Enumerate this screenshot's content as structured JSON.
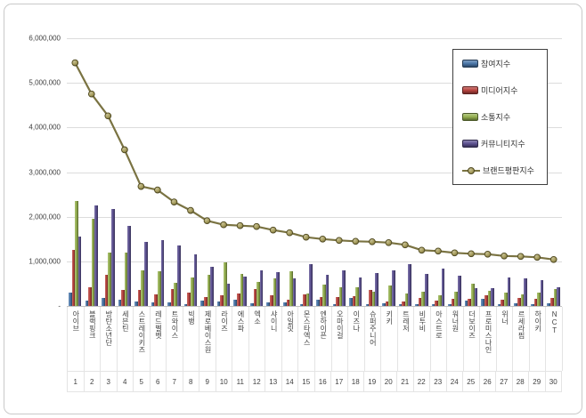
{
  "chart_data": {
    "type": "bar+line",
    "title": "",
    "categories": [
      "아이브",
      "블랙핑크",
      "방탄소년단",
      "세븐틴",
      "스트레이키즈",
      "레드벨벳",
      "트와이스",
      "빅뱅",
      "제로베이스원",
      "라이즈",
      "에스파",
      "엑소",
      "샤이니",
      "아일릿",
      "몬스타엑스",
      "엔하이픈",
      "오마이걸",
      "이즈나",
      "슈퍼주니어",
      "키키",
      "트레저",
      "비투비",
      "아스트로",
      "워너원",
      "더보이즈",
      "프로미스나인",
      "위너",
      "르세라핌",
      "하이키",
      "NCT"
    ],
    "ranks": [
      "1",
      "2",
      "3",
      "4",
      "5",
      "6",
      "7",
      "8",
      "9",
      "10",
      "11",
      "12",
      "13",
      "14",
      "15",
      "16",
      "17",
      "18",
      "19",
      "20",
      "21",
      "22",
      "23",
      "24",
      "25",
      "26",
      "27",
      "28",
      "29",
      "30"
    ],
    "series": [
      {
        "name": "참여지수",
        "type": "bar",
        "color": "#4A76A8",
        "values": [
          300000,
          130000,
          180000,
          150000,
          100000,
          80000,
          80000,
          50000,
          130000,
          110000,
          150000,
          60000,
          90000,
          90000,
          50000,
          140000,
          50000,
          180000,
          40000,
          60000,
          40000,
          40000,
          40000,
          40000,
          120000,
          170000,
          40000,
          60000,
          50000,
          60000
        ]
      },
      {
        "name": "미디어지수",
        "type": "bar",
        "color": "#B8443F",
        "values": [
          1250000,
          420000,
          700000,
          350000,
          350000,
          270000,
          380000,
          300000,
          210000,
          240000,
          280000,
          380000,
          250000,
          150000,
          260000,
          200000,
          200000,
          230000,
          350000,
          110000,
          110000,
          180000,
          120000,
          160000,
          160000,
          250000,
          140000,
          180000,
          160000,
          190000
        ]
      },
      {
        "name": "소통지수",
        "type": "bar",
        "color": "#94AF4F",
        "values": [
          2350000,
          1950000,
          1200000,
          1200000,
          800000,
          770000,
          520000,
          630000,
          700000,
          980000,
          720000,
          540000,
          610000,
          780000,
          290000,
          470000,
          420000,
          410000,
          320000,
          450000,
          290000,
          310000,
          240000,
          310000,
          490000,
          340000,
          300000,
          260000,
          300000,
          380000
        ]
      },
      {
        "name": "커뮤니티지수",
        "type": "bar",
        "color": "#5C5191",
        "values": [
          1550000,
          2250000,
          2180000,
          1800000,
          1430000,
          1480000,
          1350000,
          1160000,
          870000,
          490000,
          650000,
          800000,
          750000,
          620000,
          940000,
          690000,
          800000,
          630000,
          730000,
          800000,
          930000,
          720000,
          830000,
          680000,
          400000,
          400000,
          640000,
          610000,
          580000,
          410000
        ]
      },
      {
        "name": "브랜드평판지수",
        "type": "line",
        "color": "#7A7342",
        "marker_fill": "#A89E5D",
        "marker_stroke": "#4E4820",
        "values": [
          5450000,
          4750000,
          4260000,
          3500000,
          2680000,
          2600000,
          2330000,
          2140000,
          1910000,
          1820000,
          1800000,
          1780000,
          1700000,
          1640000,
          1540000,
          1500000,
          1470000,
          1450000,
          1440000,
          1420000,
          1370000,
          1250000,
          1230000,
          1190000,
          1170000,
          1160000,
          1120000,
          1110000,
          1090000,
          1040000
        ]
      }
    ],
    "ylim": [
      0,
      6000000
    ],
    "ytick_interval": 1000000,
    "ytick_labels": [
      "-",
      "1,000,000",
      "2,000,000",
      "3,000,000",
      "4,000,000",
      "5,000,000",
      "6,000,000"
    ],
    "grid": true,
    "legend_position": "top-right",
    "gridline_color": "#dcdcdc"
  }
}
